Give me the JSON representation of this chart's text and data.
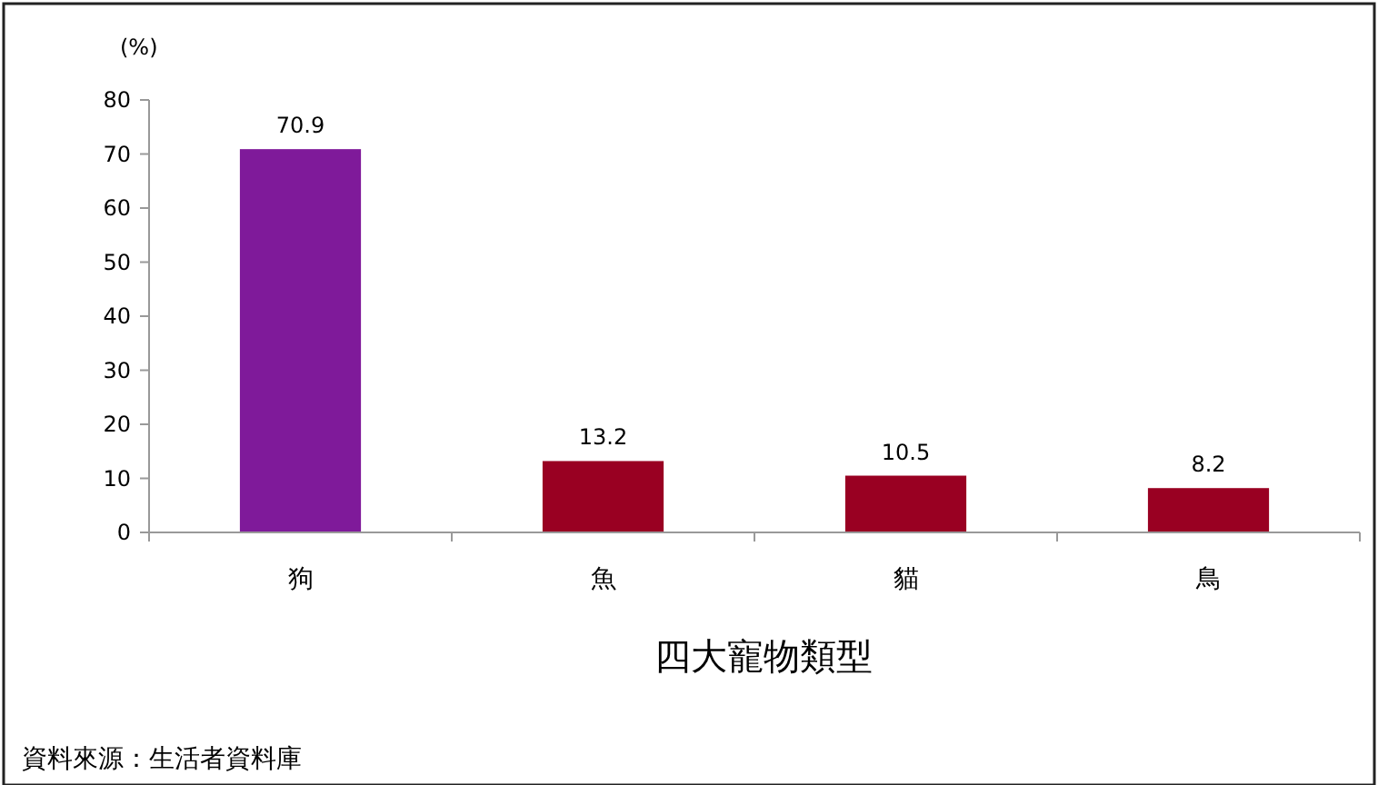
{
  "chart_data": {
    "type": "bar",
    "ylabel": "(%)",
    "xlabel": "四大寵物類型",
    "categories": [
      "狗",
      "魚",
      "貓",
      "鳥"
    ],
    "values": [
      70.9,
      13.2,
      10.5,
      8.2
    ],
    "colors": [
      "#7f1a9a",
      "#990022",
      "#990022",
      "#990022"
    ],
    "ylim": [
      0,
      80
    ],
    "yticks": [
      0,
      10,
      20,
      30,
      40,
      50,
      60,
      70,
      80
    ],
    "data_labels": true,
    "grid": false,
    "annotations": [
      "資料來源：生活者資料庫"
    ]
  }
}
